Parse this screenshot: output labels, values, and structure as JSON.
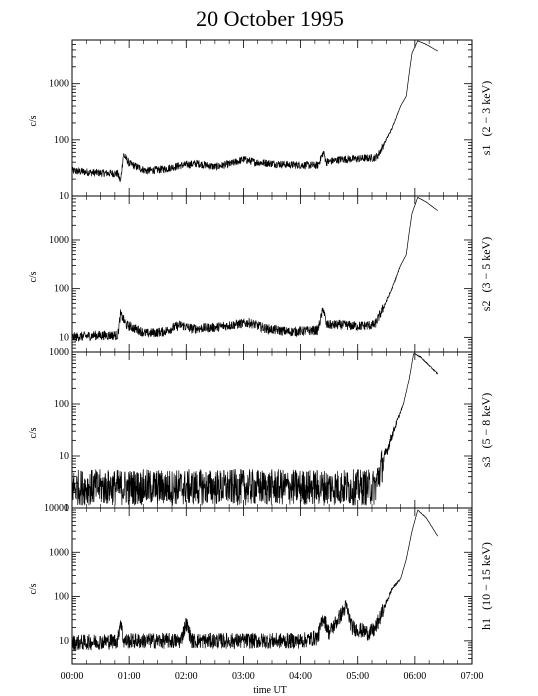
{
  "chart_data": {
    "type": "line",
    "title": "20 October 1995",
    "xlabel": "time UT",
    "x_ticks": [
      "00:00",
      "01:00",
      "02:00",
      "03:00",
      "04:00",
      "05:00",
      "06:00",
      "07:00"
    ],
    "xlim": [
      0,
      7
    ],
    "x_unit": "hours UT",
    "panels": [
      {
        "channel": "s1",
        "band": "(2 − 3 keV)",
        "ylabel": "c/s",
        "yscale": "log",
        "ylim": [
          10,
          6000
        ],
        "y_ticks": [
          "10",
          "100",
          "1000"
        ],
        "noise": 0.07,
        "points": [
          [
            0,
            28
          ],
          [
            0.4,
            26
          ],
          [
            0.8,
            25
          ],
          [
            0.85,
            18
          ],
          [
            0.9,
            55
          ],
          [
            1.0,
            38
          ],
          [
            1.3,
            28
          ],
          [
            1.6,
            30
          ],
          [
            1.9,
            35
          ],
          [
            2.2,
            38
          ],
          [
            2.5,
            33
          ],
          [
            2.8,
            38
          ],
          [
            3.0,
            45
          ],
          [
            3.2,
            40
          ],
          [
            3.5,
            38
          ],
          [
            3.8,
            36
          ],
          [
            4.3,
            35
          ],
          [
            4.4,
            60
          ],
          [
            4.45,
            40
          ],
          [
            4.7,
            45
          ],
          [
            5.0,
            46
          ],
          [
            5.3,
            48
          ],
          [
            5.35,
            52
          ],
          [
            5.45,
            80
          ],
          [
            5.6,
            160
          ],
          [
            5.75,
            400
          ],
          [
            5.85,
            600
          ],
          [
            5.9,
            1500
          ],
          [
            5.95,
            3500
          ],
          [
            6.05,
            5800
          ],
          [
            6.2,
            5000
          ],
          [
            6.4,
            3800
          ]
        ]
      },
      {
        "channel": "s2",
        "band": "(3 − 5 keV)",
        "ylabel": "c/s",
        "yscale": "log",
        "ylim": [
          5,
          8000
        ],
        "y_ticks": [
          "10",
          "100",
          "1000"
        ],
        "noise": 0.1,
        "points": [
          [
            0,
            10
          ],
          [
            0.4,
            11
          ],
          [
            0.8,
            11
          ],
          [
            0.85,
            30
          ],
          [
            0.95,
            18
          ],
          [
            1.3,
            12
          ],
          [
            1.6,
            13
          ],
          [
            1.9,
            18
          ],
          [
            2.1,
            15
          ],
          [
            2.5,
            16
          ],
          [
            2.8,
            18
          ],
          [
            3.1,
            20
          ],
          [
            3.4,
            15
          ],
          [
            3.8,
            13
          ],
          [
            4.3,
            14
          ],
          [
            4.4,
            40
          ],
          [
            4.45,
            18
          ],
          [
            4.7,
            18
          ],
          [
            5.0,
            17
          ],
          [
            5.3,
            18
          ],
          [
            5.45,
            40
          ],
          [
            5.6,
            100
          ],
          [
            5.75,
            300
          ],
          [
            5.85,
            500
          ],
          [
            5.9,
            1400
          ],
          [
            5.95,
            3500
          ],
          [
            6.05,
            7500
          ],
          [
            6.2,
            6000
          ],
          [
            6.4,
            4000
          ]
        ]
      },
      {
        "channel": "s3",
        "band": "(5 − 8 keV)",
        "ylabel": "c/s",
        "yscale": "log",
        "ylim": [
          1,
          1000
        ],
        "y_ticks": [
          "1",
          "10",
          "100",
          "1000"
        ],
        "noise": 0.35,
        "points": [
          [
            0,
            2.5
          ],
          [
            1,
            2.5
          ],
          [
            2,
            2.5
          ],
          [
            3,
            2.5
          ],
          [
            4,
            2.5
          ],
          [
            5.3,
            2.5
          ],
          [
            5.45,
            8
          ],
          [
            5.6,
            25
          ],
          [
            5.7,
            50
          ],
          [
            5.8,
            100
          ],
          [
            5.9,
            300
          ],
          [
            5.98,
            950
          ],
          [
            6.1,
            800
          ],
          [
            6.4,
            380
          ]
        ]
      },
      {
        "channel": "h1",
        "band": "(10 − 15 keV)",
        "ylabel": "c/s",
        "yscale": "log",
        "ylim": [
          3,
          10000
        ],
        "y_ticks": [
          "10",
          "100",
          "1000",
          "10000"
        ],
        "noise": 0.18,
        "points": [
          [
            0,
            9
          ],
          [
            0.8,
            10
          ],
          [
            0.85,
            30
          ],
          [
            0.9,
            10
          ],
          [
            1.9,
            10
          ],
          [
            2.0,
            25
          ],
          [
            2.1,
            10
          ],
          [
            3.0,
            10
          ],
          [
            4.0,
            10
          ],
          [
            4.3,
            12
          ],
          [
            4.4,
            35
          ],
          [
            4.5,
            15
          ],
          [
            4.8,
            60
          ],
          [
            4.9,
            20
          ],
          [
            5.2,
            15
          ],
          [
            5.3,
            18
          ],
          [
            5.45,
            50
          ],
          [
            5.6,
            150
          ],
          [
            5.75,
            250
          ],
          [
            5.85,
            700
          ],
          [
            5.95,
            3000
          ],
          [
            6.05,
            9000
          ],
          [
            6.2,
            6000
          ],
          [
            6.4,
            2300
          ]
        ]
      }
    ],
    "grid": false,
    "line_color": "#000000"
  }
}
